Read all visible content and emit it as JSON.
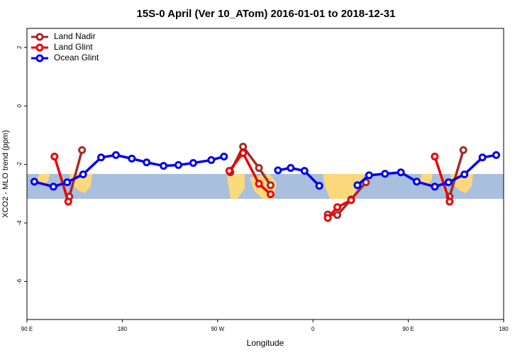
{
  "chart_data": {
    "type": "line",
    "title": "15S-0 April (Ver 10_ATom)   2016-01-01 to 2018-12-31",
    "xlabel": "Longitude",
    "ylabel": "XCO2 - MLO trend (ppm)",
    "xlim": [
      90,
      540
    ],
    "ylim": [
      -7.3,
      2.65
    ],
    "xticks": [
      {
        "value": 90,
        "label": "90 E"
      },
      {
        "value": 180,
        "label": "180"
      },
      {
        "value": 270,
        "label": "90 W"
      },
      {
        "value": 360,
        "label": "0"
      },
      {
        "value": 450,
        "label": "90 E"
      },
      {
        "value": 540,
        "label": "180"
      }
    ],
    "yticks": [
      2,
      0,
      -2,
      -4,
      -6
    ],
    "legend": "top-left",
    "series": [
      {
        "name": "Land Nadir",
        "color": "#a52a2a",
        "x": [
          130,
          142,
          200,
          282,
          294,
          309,
          320,
          350,
          374,
          383,
          396,
          410,
          450,
          489,
          502
        ],
        "values": [
          -3.1,
          -1.51,
          null,
          -2.27,
          -1.39,
          -2.12,
          -2.71,
          null,
          -3.71,
          -3.73,
          -3.2,
          -2.61,
          null,
          -3.1,
          -1.51
        ]
      },
      {
        "name": "Land Glint",
        "color": "#ee0000",
        "x": [
          116,
          129,
          200,
          281,
          294,
          309,
          320,
          350,
          374,
          383,
          396,
          450,
          475,
          489
        ],
        "values": [
          -1.73,
          -3.27,
          null,
          -2.22,
          -1.61,
          -2.66,
          -3.02,
          null,
          -3.83,
          -3.46,
          -3.22,
          null,
          -1.73,
          -3.27
        ]
      },
      {
        "name": "Ocean Glint",
        "color": "#0000ee",
        "x": [
          97,
          115,
          128,
          143,
          160,
          174,
          189,
          203,
          219,
          233,
          247,
          264,
          276,
          300,
          327,
          339,
          352,
          366,
          385,
          402,
          413,
          428,
          443,
          458,
          475,
          488,
          503,
          520,
          533
        ],
        "values": [
          -2.59,
          -2.76,
          -2.61,
          -2.34,
          -1.76,
          -1.68,
          -1.8,
          -1.93,
          -2.05,
          -2.02,
          -1.95,
          -1.85,
          -1.73,
          null,
          -2.2,
          -2.12,
          -2.22,
          -2.73,
          null,
          -2.71,
          -2.37,
          -2.32,
          -2.27,
          -2.59,
          -2.76,
          -2.61,
          -2.34,
          -1.76,
          -1.68
        ]
      }
    ]
  }
}
